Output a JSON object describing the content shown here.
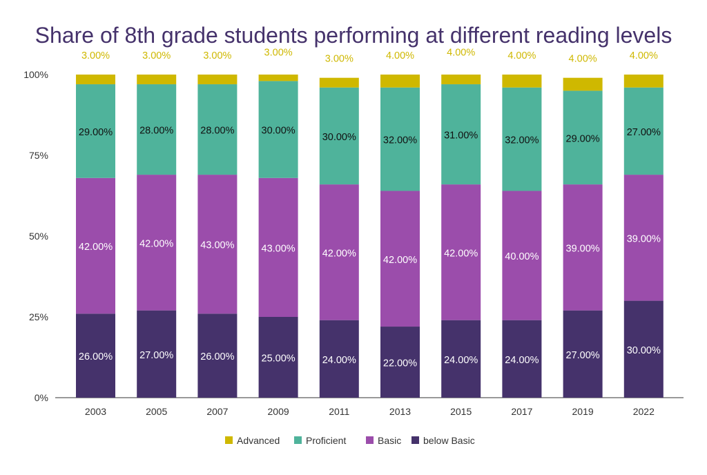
{
  "chart_data": {
    "type": "bar",
    "stacked": true,
    "title": "Share of 8th grade students performing at different reading levels",
    "categories": [
      "2003",
      "2005",
      "2007",
      "2009",
      "2011",
      "2013",
      "2015",
      "2017",
      "2019",
      "2022"
    ],
    "series": [
      {
        "name": "below Basic",
        "color": "#45326b",
        "values": [
          26,
          27,
          26,
          25,
          24,
          22,
          24,
          24,
          27,
          30
        ],
        "labels": [
          "26.00%",
          "27.00%",
          "26.00%",
          "25.00%",
          "24.00%",
          "22.00%",
          "24.00%",
          "24.00%",
          "27.00%",
          "30.00%"
        ]
      },
      {
        "name": "Basic",
        "color": "#9b4dab",
        "values": [
          42,
          42,
          43,
          43,
          42,
          42,
          42,
          40,
          39,
          39
        ],
        "labels": [
          "42.00%",
          "42.00%",
          "43.00%",
          "43.00%",
          "42.00%",
          "42.00%",
          "42.00%",
          "40.00%",
          "39.00%",
          "39.00%"
        ]
      },
      {
        "name": "Proficient",
        "color": "#4fb39b",
        "values": [
          29,
          28,
          28,
          30,
          30,
          32,
          31,
          32,
          29,
          27
        ],
        "labels": [
          "29.00%",
          "28.00%",
          "28.00%",
          "30.00%",
          "30.00%",
          "32.00%",
          "31.00%",
          "32.00%",
          "29.00%",
          "27.00%"
        ]
      },
      {
        "name": "Advanced",
        "color": "#cfb800",
        "values": [
          3,
          3,
          3,
          3,
          3,
          4,
          4,
          4,
          4,
          4
        ],
        "labels": [
          "3.00%",
          "3.00%",
          "3.00%",
          "3.00%",
          "3.00%",
          "4.00%",
          "4.00%",
          "4.00%",
          "4.00%",
          "4.00%"
        ]
      }
    ],
    "legend_order": [
      "Advanced",
      "Proficient",
      "Basic",
      "below Basic"
    ],
    "ylim": [
      0,
      100
    ],
    "yticks": [
      "0%",
      "25%",
      "50%",
      "75%",
      "100%"
    ],
    "grid": false,
    "legend_placement": "bottom",
    "title_color": "#45326b"
  }
}
